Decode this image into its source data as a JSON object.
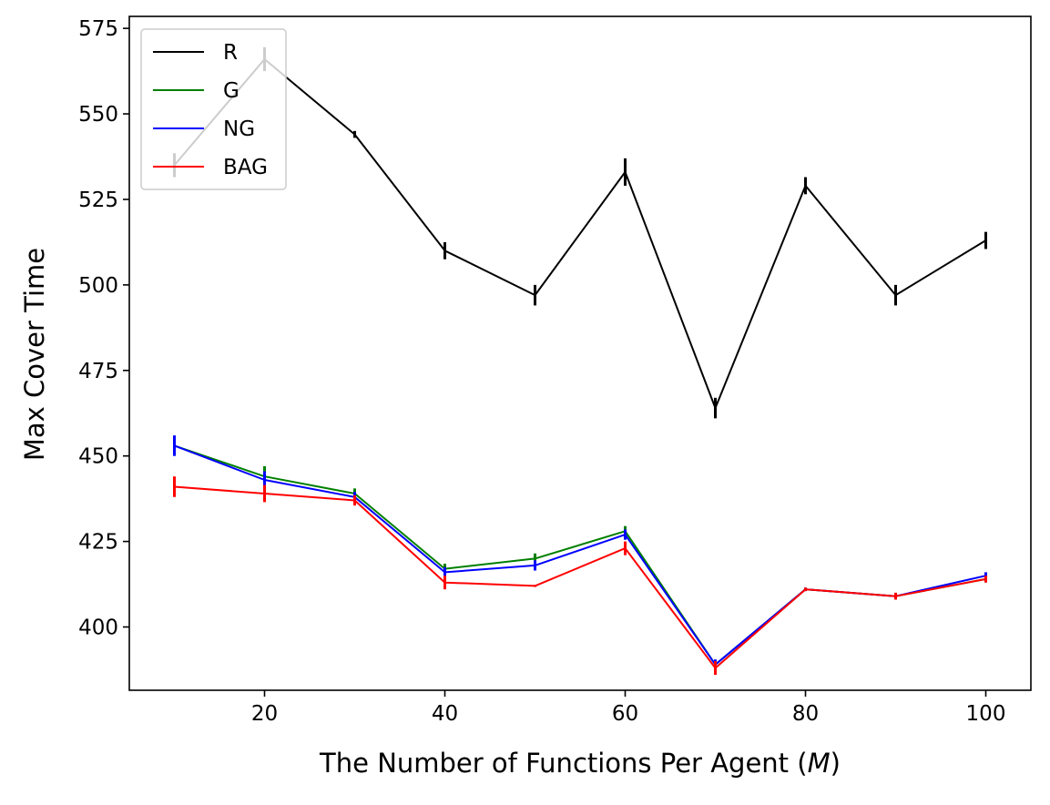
{
  "chart_data": {
    "type": "line",
    "title": "",
    "xlabel": "The Number of Functions Per Agent",
    "xlabel_math": "M",
    "ylabel": "Max Cover Time",
    "x": [
      10,
      20,
      30,
      40,
      50,
      60,
      70,
      80,
      90,
      100
    ],
    "xlim": [
      5,
      105
    ],
    "ylim": [
      381.5,
      578.5
    ],
    "xticks": [
      20,
      40,
      60,
      80,
      100
    ],
    "yticks": [
      400,
      425,
      450,
      475,
      500,
      525,
      550,
      575
    ],
    "grid": false,
    "legend_position": "top-left",
    "series": [
      {
        "name": "R",
        "color": "#000000",
        "values": [
          535,
          566,
          544,
          510,
          497,
          533,
          464,
          529,
          497,
          513
        ],
        "errors": [
          3.5,
          3.5,
          1,
          2.5,
          3,
          4,
          3,
          2.5,
          3,
          2.5
        ]
      },
      {
        "name": "G",
        "color": "#008000",
        "values": [
          453,
          444,
          439,
          417,
          420,
          428,
          389,
          411,
          409,
          414
        ],
        "errors": [
          2,
          3,
          1.5,
          1.5,
          1.5,
          1.5,
          1,
          0.5,
          1,
          1
        ]
      },
      {
        "name": "NG",
        "color": "#0000ff",
        "values": [
          453,
          443,
          438,
          416,
          418,
          427,
          389,
          411,
          409,
          415
        ],
        "errors": [
          3,
          2.5,
          1.5,
          1.5,
          1.5,
          1.5,
          1.5,
          0.5,
          1,
          1
        ]
      },
      {
        "name": "BAG",
        "color": "#ff0000",
        "values": [
          441,
          439,
          437,
          413,
          412,
          423,
          388,
          411,
          409,
          414
        ],
        "errors": [
          3,
          2.5,
          1.5,
          2,
          0.3,
          2,
          2,
          0.5,
          1,
          1
        ]
      }
    ]
  }
}
